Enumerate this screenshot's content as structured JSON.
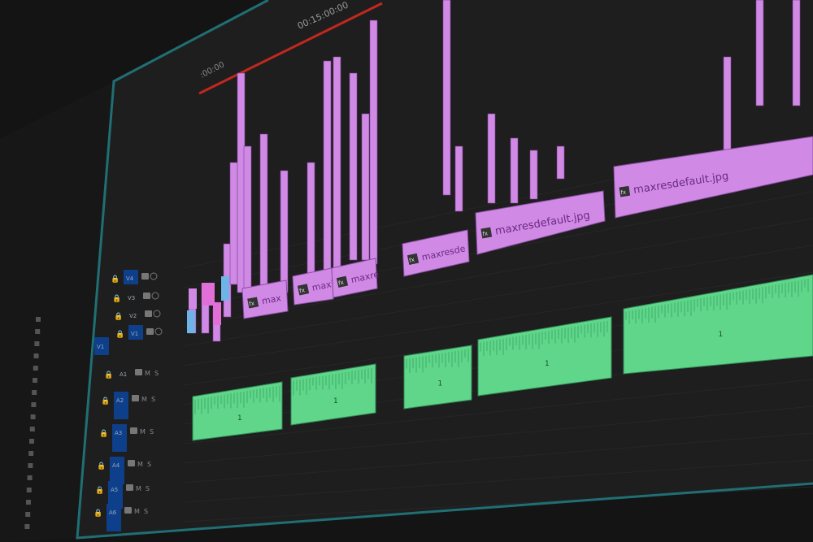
{
  "timeline": {
    "ruler": {
      "start_timecode": ":00:00",
      "mid_timecode": "00:15:00:00"
    },
    "tracks": [
      {
        "label": "V4",
        "targeted": true
      },
      {
        "label": "V3",
        "targeted": false
      },
      {
        "label": "V2",
        "targeted": false
      },
      {
        "label": "V1",
        "targeted": true,
        "source_patch": "V1"
      },
      {
        "label": "A1",
        "targeted": false,
        "mute": "M",
        "solo": "S"
      },
      {
        "label": "A2",
        "targeted": true,
        "mute": "M",
        "solo": "S"
      },
      {
        "label": "A3",
        "targeted": true,
        "mute": "M",
        "solo": "S"
      },
      {
        "label": "A4",
        "targeted": true,
        "mute": "M",
        "solo": "S"
      },
      {
        "label": "A5",
        "targeted": true,
        "mute": "M",
        "solo": "S"
      },
      {
        "label": "A6",
        "targeted": true,
        "mute": "M",
        "solo": "S"
      }
    ],
    "video_clips": [
      {
        "label": "max",
        "fx": "fx"
      },
      {
        "label": "maxi",
        "fx": "fx"
      },
      {
        "label": "maxre",
        "fx": "fx"
      },
      {
        "label": "maxresde",
        "fx": "fx"
      },
      {
        "label": "maxresdefault.jpg",
        "fx": "fx"
      },
      {
        "label": "maxresdefault.jpg",
        "fx": "fx"
      }
    ],
    "audio_clips": [
      {
        "label": "1"
      },
      {
        "label": "1"
      },
      {
        "label": "1"
      },
      {
        "label": "1"
      },
      {
        "label": "1"
      }
    ]
  },
  "colors": {
    "background": "#141414",
    "panel": "#1f1f1f",
    "panel_border": "#1f6f74",
    "video_clip": "#d08ae6",
    "video_clip_dark": "#b36bcf",
    "audio_clip": "#5fd68a",
    "work_area_bar": "#c0281e",
    "track_target": "#0d3f8a",
    "text_gray": "#8a8a8a"
  }
}
